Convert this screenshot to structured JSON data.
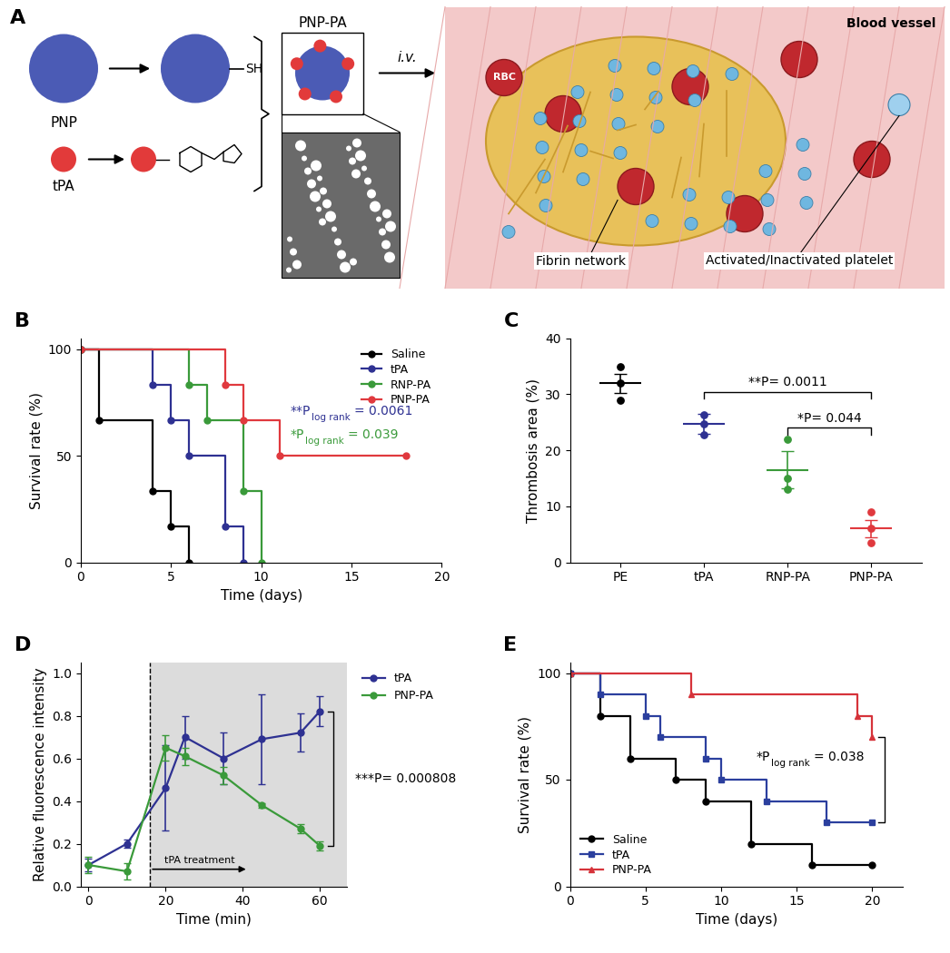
{
  "diagram": {
    "panel_label": "A",
    "labels": {
      "pnp": "PNP",
      "thiol": "SH",
      "tpa": "tPA",
      "conjugate": "PNP-PA",
      "route": "i.v.",
      "vessel": "Blood vessel",
      "rbc": "RBC",
      "fibrin": "Fibrin network",
      "platelet": "Activated/Inactivated platelet"
    }
  },
  "chart_data": [
    {
      "panel_label": "B",
      "type": "line",
      "line_style": "steps",
      "marker": "circle",
      "x_label": "Time (days)",
      "y_label": "Survival rate (%)",
      "xlim": [
        0,
        20
      ],
      "xticks": [
        0,
        5,
        10,
        15,
        20
      ],
      "ylim": [
        0,
        105
      ],
      "yticks": [
        0,
        50,
        100
      ],
      "legend": "upper right",
      "series": [
        {
          "name": "Saline",
          "color": "#000000",
          "x": [
            0,
            1,
            4,
            5,
            6
          ],
          "values": [
            100,
            66.7,
            33.3,
            16.7,
            0
          ]
        },
        {
          "name": "tPA",
          "color": "#2e3192",
          "x": [
            0,
            4,
            5,
            6,
            8,
            9
          ],
          "values": [
            100,
            83.3,
            66.7,
            50,
            16.7,
            0
          ]
        },
        {
          "name": "RNP-PA",
          "color": "#3a9a3a",
          "x": [
            0,
            6,
            7,
            9,
            10
          ],
          "values": [
            100,
            83.3,
            66.7,
            33.3,
            0
          ]
        },
        {
          "name": "PNP-PA",
          "color": "#e0393e",
          "x": [
            0,
            8,
            9,
            11,
            18
          ],
          "values": [
            100,
            83.3,
            66.7,
            50,
            50
          ]
        }
      ],
      "annotations": [
        {
          "text": "**P",
          "subscript": "log rank",
          "value_text": "= 0.0061",
          "color": "#2e3192"
        },
        {
          "text": "*P",
          "subscript": "log rank",
          "value_text": "= 0.039",
          "color": "#3a9a3a"
        }
      ]
    },
    {
      "panel_label": "C",
      "type": "scatter",
      "y_label": "Thrombosis area (%)",
      "categories": [
        "PE",
        "tPA",
        "RNP-PA",
        "PNP-PA"
      ],
      "colors": [
        "#000000",
        "#2e3192",
        "#3a9a3a",
        "#e0393e"
      ],
      "points": [
        [
          29,
          32,
          35
        ],
        [
          22.8,
          24.7,
          26.3
        ],
        [
          13,
          15,
          22
        ],
        [
          3.5,
          6,
          9
        ]
      ],
      "means": [
        32,
        24.7,
        16.5,
        6
      ],
      "errors": [
        1.7,
        1.8,
        3.3,
        1.6
      ],
      "ylim": [
        0,
        40
      ],
      "yticks": [
        0,
        10,
        20,
        30,
        40
      ],
      "annotations": [
        {
          "text": "**P= 0.0011",
          "groups": [
            "tPA",
            "PNP-PA"
          ]
        },
        {
          "text": "*P= 0.044",
          "groups": [
            "RNP-PA",
            "PNP-PA"
          ]
        }
      ]
    },
    {
      "panel_label": "D",
      "type": "line",
      "marker": "circle",
      "x_label": "Time (min)",
      "y_label": "Relative fluorescence intensity",
      "xlim": [
        -2,
        67
      ],
      "xticks": [
        0,
        20,
        40,
        60
      ],
      "ylim": [
        0,
        1.05
      ],
      "yticks": [
        {
          "value": 0,
          "label": "0.0"
        },
        0.2,
        0.4,
        0.6,
        0.8,
        {
          "value": 1,
          "label": "1.0"
        }
      ],
      "legend": "upper left",
      "series": [
        {
          "name": "tPA",
          "color": "#2e3192",
          "x": [
            0,
            10,
            20,
            25,
            35,
            45,
            55,
            60
          ],
          "values": [
            0.1,
            0.2,
            0.46,
            0.7,
            0.6,
            0.69,
            0.72,
            0.82
          ],
          "errors": [
            0.03,
            0.02,
            0.2,
            0.1,
            0.12,
            0.21,
            0.09,
            0.07
          ]
        },
        {
          "name": "PNP-PA",
          "color": "#3a9a3a",
          "x": [
            0,
            10,
            20,
            25,
            35,
            45,
            55,
            60
          ],
          "values": [
            0.1,
            0.07,
            0.65,
            0.61,
            0.52,
            0.38,
            0.27,
            0.19
          ],
          "errors": [
            0.04,
            0.04,
            0.06,
            0.04,
            0.04,
            0.01,
            0.02,
            0.02
          ]
        }
      ],
      "treatment": {
        "label": "tPA treatment",
        "start": 16
      },
      "annotations": [
        {
          "text": "***P= 0.000808",
          "groups": [
            "tPA",
            "PNP-PA"
          ]
        }
      ]
    },
    {
      "panel_label": "E",
      "type": "line",
      "line_style": "steps",
      "x_label": "Time (days)",
      "y_label": "Survival rate (%)",
      "xlim": [
        0,
        22
      ],
      "xticks": [
        0,
        5,
        10,
        15,
        20
      ],
      "ylim": [
        0,
        105
      ],
      "yticks": [
        0,
        50,
        100
      ],
      "legend": "lower left",
      "series": [
        {
          "name": "Saline",
          "color": "#000000",
          "marker": "circle",
          "x": [
            0,
            2,
            4,
            7,
            9,
            12,
            16,
            20
          ],
          "values": [
            100,
            80,
            60,
            50,
            40,
            20,
            10,
            10
          ]
        },
        {
          "name": "tPA",
          "color": "#2b3f9e",
          "marker": "square",
          "x": [
            0,
            2,
            5,
            6,
            9,
            10,
            13,
            17,
            20
          ],
          "values": [
            100,
            90,
            80,
            70,
            60,
            50,
            40,
            30,
            30
          ]
        },
        {
          "name": "PNP-PA",
          "color": "#d6333a",
          "marker": "triangle",
          "x": [
            0,
            8,
            19,
            20
          ],
          "values": [
            100,
            90,
            80,
            70
          ]
        }
      ],
      "annotations": [
        {
          "text": "*P",
          "subscript": "log rank",
          "value_text": "= 0.038",
          "groups": [
            "tPA",
            "PNP-PA"
          ],
          "color": "#000000"
        }
      ]
    }
  ]
}
